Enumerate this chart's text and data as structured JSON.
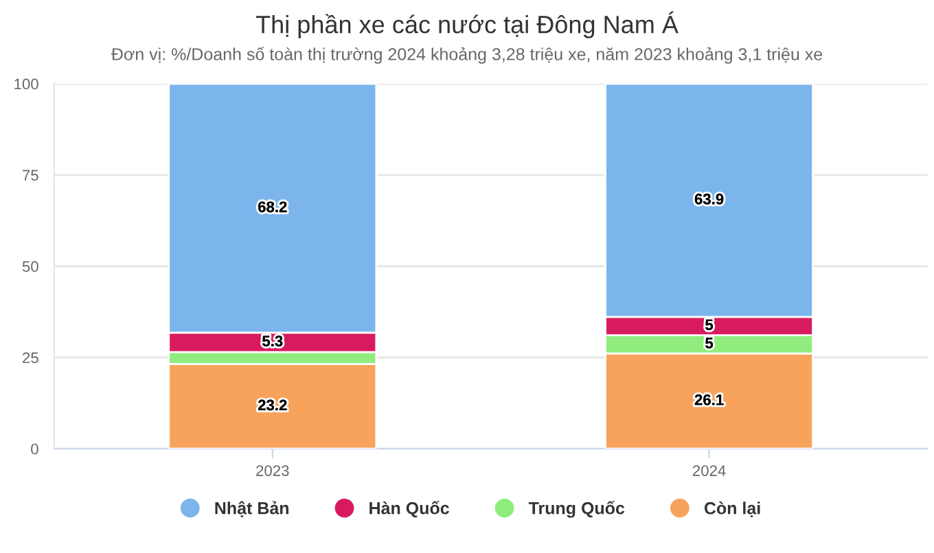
{
  "chart_data": {
    "type": "bar",
    "title": "Thị phần xe các nước tại Đông Nam Á",
    "subtitle": "Đơn vị: %/Doanh số toàn thị trường 2024 khoảng 3,28 triệu xe, năm 2023 khoảng 3,1 triệu xe",
    "categories": [
      "2023",
      "2024"
    ],
    "stacked": true,
    "series": [
      {
        "name": "Còn lại",
        "color": "#f7a35c",
        "values": [
          23.2,
          26.1
        ],
        "value_labels": [
          "23.2",
          "26.1"
        ]
      },
      {
        "name": "Trung Quốc",
        "color": "#90ed7d",
        "values": [
          3.3,
          5
        ],
        "value_labels": [
          null,
          "5"
        ]
      },
      {
        "name": "Hàn Quốc",
        "color": "#d81b60",
        "values": [
          5.3,
          5
        ],
        "value_labels": [
          "5.3",
          "5"
        ]
      },
      {
        "name": "Nhật Bản",
        "color": "#7cb5ec",
        "values": [
          68.2,
          63.9
        ],
        "value_labels": [
          "68.2",
          "63.9"
        ]
      }
    ],
    "ylim": [
      0,
      100
    ],
    "yticks": [
      0,
      25,
      50,
      75,
      100
    ],
    "grid": "y",
    "legend": "bottom"
  }
}
